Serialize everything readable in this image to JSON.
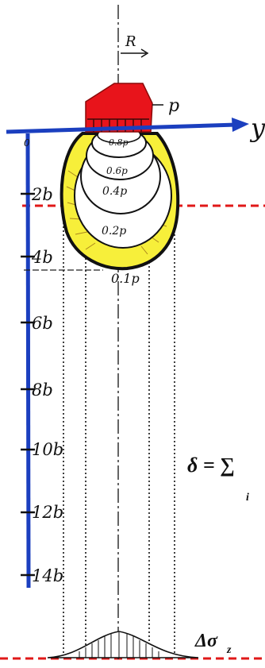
{
  "diagram": {
    "load_label": "p",
    "radius_label": "R",
    "axis_y_label": "y",
    "origin_label": "0",
    "depth_ticks": [
      "2b",
      "4b",
      "6b",
      "8b",
      "10b",
      "12b",
      "14b"
    ],
    "isobar_labels": [
      "0.8p",
      "0.6p",
      "0.4p",
      "0.2p",
      "0.1p"
    ],
    "formula_visible": "δ = ∑",
    "formula_subscript": "i",
    "bottom_label_main": "Δσ",
    "bottom_label_sub": "z",
    "colors": {
      "load_fill": "#e8141b",
      "axis_blue": "#1b3fbf",
      "bulb_yellow": "#f7ef3a",
      "dash_red": "#e01818",
      "ink": "#111111"
    }
  }
}
